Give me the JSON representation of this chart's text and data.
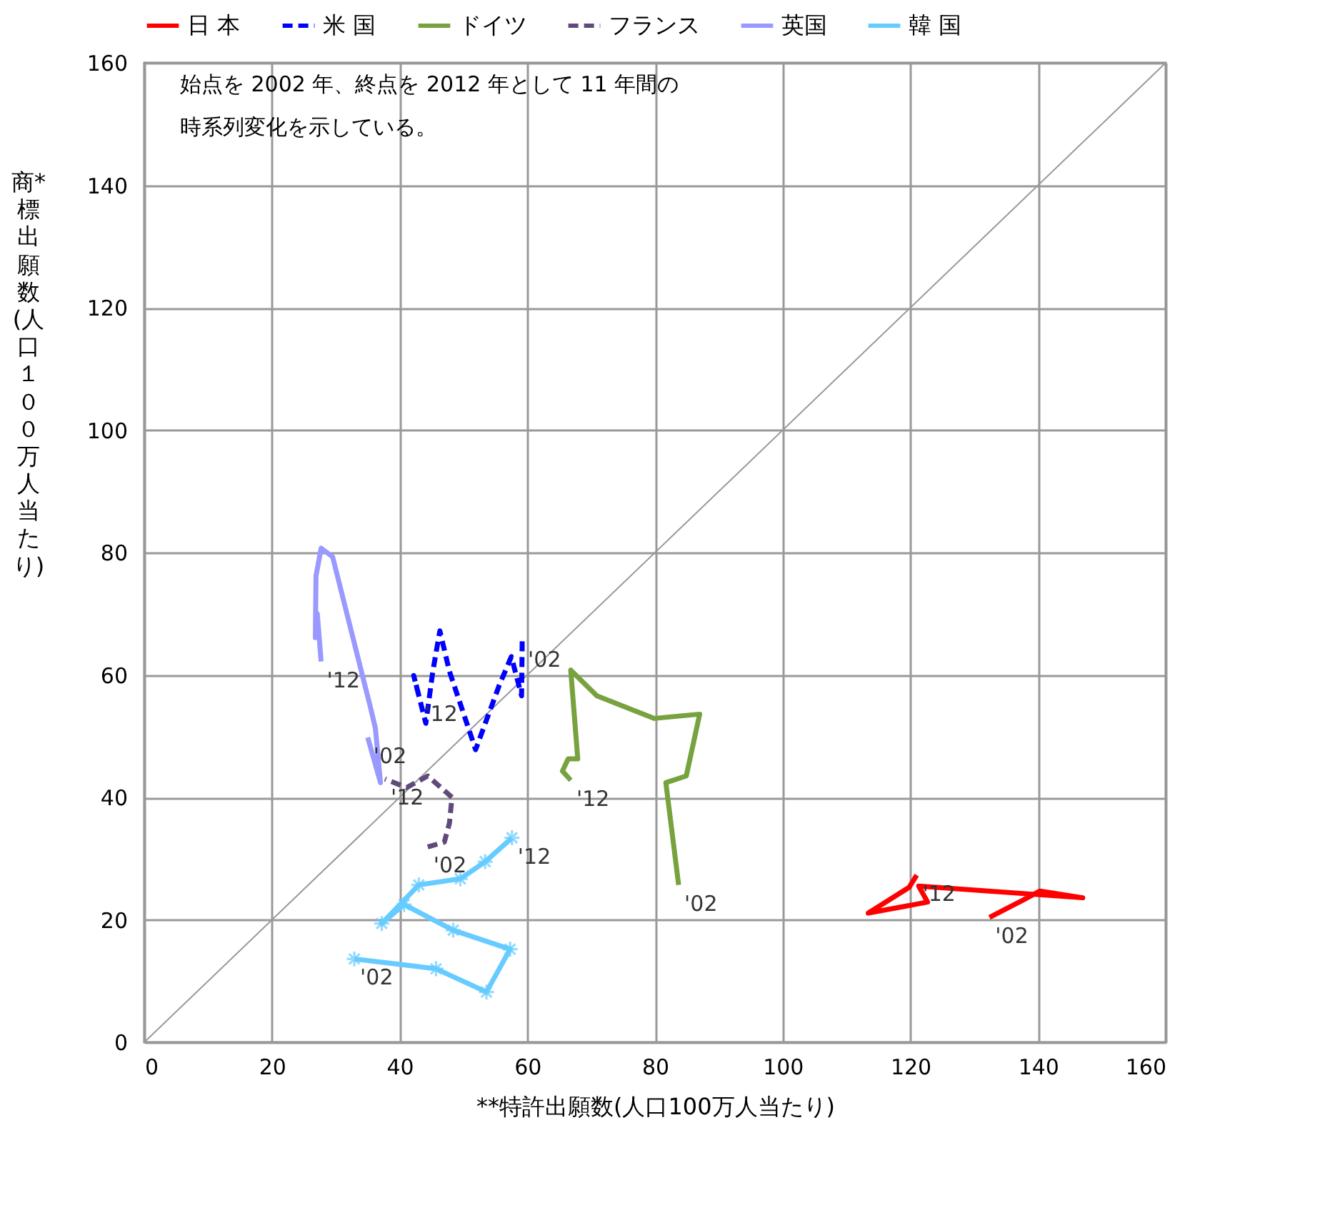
{
  "chart_data": {
    "type": "line",
    "xlabel": "**特許出願数(人口100万人当たり)",
    "ylabel": "商*標出願数(人口１００万人当たり)",
    "xlim": [
      0,
      160
    ],
    "ylim": [
      0,
      160
    ],
    "xticks": [
      0,
      20,
      40,
      60,
      80,
      100,
      120,
      140,
      160
    ],
    "yticks": [
      0,
      20,
      40,
      60,
      80,
      100,
      120,
      140,
      160
    ],
    "grid": true,
    "legend": "top",
    "series": [
      {
        "name": "日 本",
        "color": "#ff0000",
        "line_style": "solid",
        "x": [
          132.4,
          137.6,
          140.3,
          147.0,
          121.3,
          122.7,
          113.4,
          119.8,
          121.0
        ],
        "values": [
          20.4,
          23.2,
          24.7,
          23.6,
          25.5,
          22.9,
          21.1,
          25.3,
          27.3
        ]
      },
      {
        "name": "米 国",
        "color": "#0000ff",
        "line_style": "dashed",
        "x": [
          59.2,
          59.1,
          57.5,
          55.6,
          51.9,
          47.8,
          46.3,
          45.2,
          44.1,
          42.2,
          43.0
        ],
        "values": [
          65.5,
          56.6,
          63.0,
          58.3,
          47.8,
          60.6,
          67.2,
          60.6,
          52.1,
          59.9,
          56.7
        ]
      },
      {
        "name": "ドイツ",
        "color": "#77a23f",
        "line_style": "solid",
        "x": [
          83.7,
          81.7,
          84.9,
          87.0,
          79.9,
          70.9,
          66.8,
          67.9,
          66.4,
          65.5,
          66.8
        ],
        "values": [
          25.7,
          42.4,
          43.5,
          53.6,
          52.9,
          56.6,
          60.8,
          46.3,
          46.3,
          44.3,
          42.8
        ]
      },
      {
        "name": "フランス",
        "color": "#604a7b",
        "line_style": "dashed",
        "x": [
          44.4,
          47.0,
          47.8,
          48.2,
          44.4,
          41.1,
          37.7
        ],
        "values": [
          31.9,
          32.7,
          35.8,
          40.0,
          43.5,
          41.6,
          43.0
        ]
      },
      {
        "name": "英国",
        "color": "#9999ff",
        "line_style": "solid",
        "x": [
          35.0,
          37.0,
          36.2,
          35.5,
          29.5,
          27.7,
          26.9,
          26.8,
          27.1,
          27.7
        ],
        "values": [
          49.8,
          42.4,
          51.3,
          54.4,
          79.3,
          80.7,
          76.2,
          66.1,
          70.0,
          62.2
        ]
      },
      {
        "name": "韓 国",
        "color": "#66ccff",
        "line_style": "solid",
        "marker": "cross",
        "x": [
          32.9,
          45.7,
          53.6,
          57.3,
          48.4,
          40.7,
          37.2,
          43.0,
          49.5,
          53.4,
          57.6
        ],
        "values": [
          13.6,
          12.0,
          8.2,
          15.2,
          18.3,
          22.5,
          19.4,
          25.7,
          26.7,
          29.5,
          33.4
        ]
      },
      {
        "color": "#999999",
        "line_style": "solid",
        "x": [
          0,
          160
        ],
        "values": [
          0,
          160
        ]
      }
    ],
    "annotations": [
      "始点を 2002 年、終点を 2012 年として 11 年間の",
      "時系列変化を示している。",
      {
        "text": "'12",
        "x": 121.0,
        "y": 27.3
      },
      {
        "text": "'02",
        "x": 132.4,
        "y": 20.4
      },
      {
        "text": "'12",
        "x": 66.8,
        "y": 42.8
      },
      {
        "text": "'02",
        "x": 83.7,
        "y": 25.7
      },
      {
        "text": "'02",
        "x": 59.2,
        "y": 65.5
      },
      {
        "text": "'12",
        "x": 43.0,
        "y": 56.7
      },
      {
        "text": "'12",
        "x": 37.7,
        "y": 43.0
      },
      {
        "text": "'02",
        "x": 44.4,
        "y": 31.9
      },
      {
        "text": "'12",
        "x": 27.7,
        "y": 62.2
      },
      {
        "text": "'02",
        "x": 35.0,
        "y": 49.8
      },
      {
        "text": "'12",
        "x": 57.6,
        "y": 33.4
      },
      {
        "text": "'02",
        "x": 32.9,
        "y": 13.6
      }
    ]
  }
}
